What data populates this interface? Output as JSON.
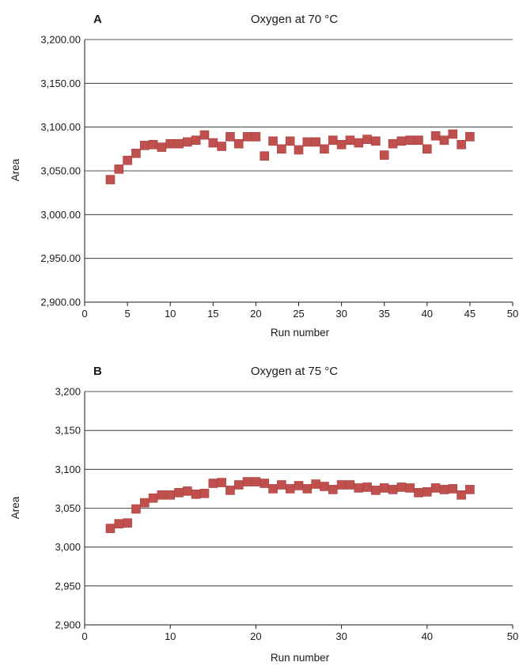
{
  "chart_data": [
    {
      "panel": "A",
      "type": "scatter",
      "title": "Oxygen at 70 °C",
      "xlabel": "Run number",
      "ylabel": "Area",
      "xlim": [
        0,
        50
      ],
      "ylim": [
        2900,
        3200
      ],
      "x_ticks": [
        "0",
        "5",
        "10",
        "15",
        "20",
        "25",
        "30",
        "35",
        "40",
        "45",
        "50"
      ],
      "y_ticks": [
        "2,900.00",
        "2,950.00",
        "3,000.00",
        "3,050.00",
        "3,100.00",
        "3,150.00",
        "3,200.00"
      ],
      "grid": true,
      "marker_color": "#c0504d",
      "x": [
        3,
        4,
        5,
        6,
        7,
        8,
        9,
        10,
        11,
        12,
        13,
        14,
        15,
        16,
        17,
        18,
        19,
        20,
        21,
        22,
        23,
        24,
        25,
        26,
        27,
        28,
        29,
        30,
        31,
        32,
        33,
        34,
        35,
        36,
        37,
        38,
        39,
        40,
        41,
        42,
        43,
        44,
        45
      ],
      "y": [
        3040,
        3052,
        3062,
        3070,
        3079,
        3080,
        3077,
        3081,
        3081,
        3083,
        3085,
        3091,
        3082,
        3078,
        3089,
        3081,
        3089,
        3089,
        3067,
        3084,
        3075,
        3084,
        3074,
        3083,
        3083,
        3075,
        3085,
        3080,
        3085,
        3082,
        3086,
        3084,
        3068,
        3081,
        3084,
        3085,
        3085,
        3075,
        3090,
        3085,
        3092,
        3080,
        3089
      ]
    },
    {
      "panel": "B",
      "type": "scatter",
      "title": "Oxygen at 75 °C",
      "xlabel": "Run number",
      "ylabel": "Area",
      "xlim": [
        0,
        50
      ],
      "ylim": [
        2900,
        3200
      ],
      "x_ticks": [
        "0",
        "10",
        "20",
        "30",
        "40",
        "50"
      ],
      "y_ticks": [
        "2,900",
        "2,950",
        "3,000",
        "3,050",
        "3,100",
        "3,150",
        "3,200"
      ],
      "grid": true,
      "marker_color": "#c0504d",
      "x": [
        3,
        4,
        5,
        6,
        7,
        8,
        9,
        10,
        11,
        12,
        13,
        14,
        15,
        16,
        17,
        18,
        19,
        20,
        21,
        22,
        23,
        24,
        25,
        26,
        27,
        28,
        29,
        30,
        31,
        32,
        33,
        34,
        35,
        36,
        37,
        38,
        39,
        40,
        41,
        42,
        43,
        44,
        45
      ],
      "y": [
        3024,
        3030,
        3031,
        3049,
        3057,
        3063,
        3067,
        3067,
        3070,
        3072,
        3068,
        3069,
        3082,
        3083,
        3073,
        3080,
        3084,
        3084,
        3082,
        3075,
        3080,
        3075,
        3079,
        3075,
        3081,
        3078,
        3074,
        3080,
        3080,
        3076,
        3077,
        3073,
        3076,
        3074,
        3077,
        3076,
        3070,
        3071,
        3076,
        3074,
        3075,
        3067,
        3074
      ]
    }
  ]
}
